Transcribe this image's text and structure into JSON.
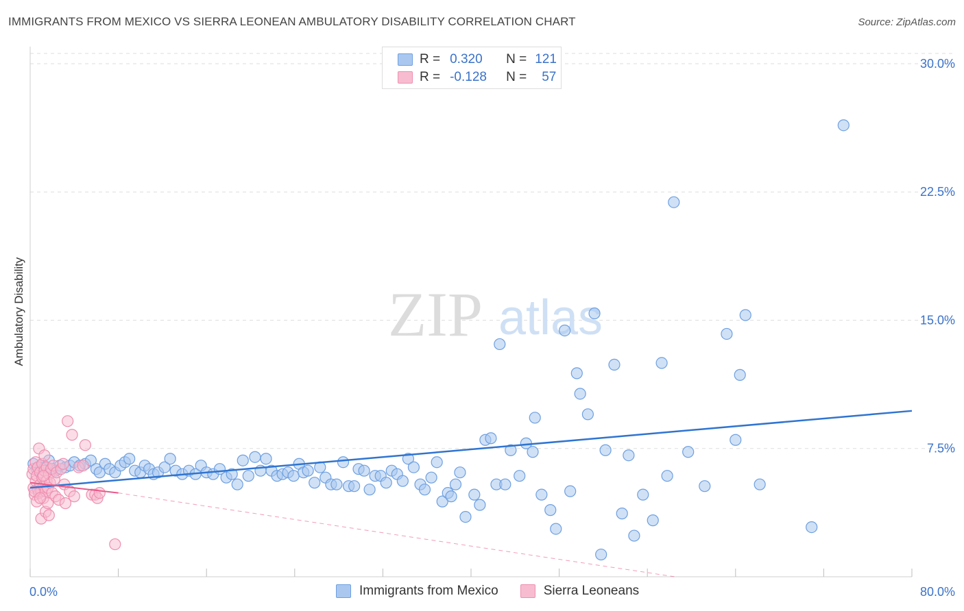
{
  "title": "IMMIGRANTS FROM MEXICO VS SIERRA LEONEAN AMBULATORY DISABILITY CORRELATION CHART",
  "source": "Source: ZipAtlas.com",
  "watermark": {
    "zip": "ZIP",
    "atlas": "atlas"
  },
  "legend_top": {
    "rows": [
      {
        "r_label": "R =",
        "r_value": "0.320",
        "n_label": "N =",
        "n_value": "121"
      },
      {
        "r_label": "R =",
        "r_value": "-0.128",
        "n_label": "N =",
        "n_value": "57"
      }
    ]
  },
  "legend_bottom": [
    "Immigrants from Mexico",
    "Sierra Leoneans"
  ],
  "colors": {
    "blue_fill": "#aac8ef",
    "blue_stroke": "#6d9fe0",
    "blue_line": "#2f74d0",
    "pink_fill": "#f7bcd0",
    "pink_stroke": "#ee8fb0",
    "pink_line": "#e8588a",
    "tick_label": "#3a72c9"
  },
  "chart_data": {
    "type": "scatter",
    "title": "IMMIGRANTS FROM MEXICO VS SIERRA LEONEAN AMBULATORY DISABILITY CORRELATION CHART",
    "xlabel": "",
    "ylabel": "Ambulatory Disability",
    "xlim": [
      0,
      80
    ],
    "ylim": [
      0,
      31
    ],
    "x_tick_labels": [
      "0.0%",
      "80.0%"
    ],
    "y_ticks": [
      7.5,
      15.0,
      22.5,
      30.0
    ],
    "y_tick_labels": [
      "7.5%",
      "15.0%",
      "22.5%",
      "30.0%"
    ],
    "grid": "horizontal dashed",
    "series": [
      {
        "name": "Immigrants from Mexico",
        "r": 0.32,
        "n": 121,
        "trend": {
          "x0": 0,
          "y0": 5.2,
          "x1": 80,
          "y1": 9.7
        },
        "points": [
          [
            0.3,
            6.6
          ],
          [
            0.6,
            6.3
          ],
          [
            1.0,
            6.5
          ],
          [
            1.3,
            6.4
          ],
          [
            1.7,
            6.8
          ],
          [
            2.0,
            6.3
          ],
          [
            2.3,
            6.2
          ],
          [
            2.7,
            6.5
          ],
          [
            3.2,
            6.4
          ],
          [
            3.6,
            6.5
          ],
          [
            4.0,
            6.7
          ],
          [
            4.5,
            6.5
          ],
          [
            5.0,
            6.6
          ],
          [
            5.5,
            6.8
          ],
          [
            6.0,
            6.3
          ],
          [
            6.3,
            6.1
          ],
          [
            6.8,
            6.6
          ],
          [
            7.2,
            6.3
          ],
          [
            7.7,
            6.1
          ],
          [
            8.2,
            6.5
          ],
          [
            8.6,
            6.7
          ],
          [
            9.0,
            6.9
          ],
          [
            9.5,
            6.2
          ],
          [
            10.0,
            6.1
          ],
          [
            10.4,
            6.5
          ],
          [
            10.8,
            6.3
          ],
          [
            11.2,
            6.0
          ],
          [
            11.6,
            6.1
          ],
          [
            12.2,
            6.4
          ],
          [
            12.7,
            6.9
          ],
          [
            13.2,
            6.2
          ],
          [
            13.8,
            6.0
          ],
          [
            14.4,
            6.2
          ],
          [
            15.0,
            6.0
          ],
          [
            15.5,
            6.5
          ],
          [
            16.0,
            6.1
          ],
          [
            16.6,
            6.0
          ],
          [
            17.2,
            6.3
          ],
          [
            17.8,
            5.8
          ],
          [
            18.3,
            6.0
          ],
          [
            18.8,
            5.4
          ],
          [
            19.3,
            6.8
          ],
          [
            19.8,
            5.9
          ],
          [
            20.4,
            7.0
          ],
          [
            20.9,
            6.2
          ],
          [
            21.4,
            6.9
          ],
          [
            21.9,
            6.2
          ],
          [
            22.4,
            5.9
          ],
          [
            22.9,
            6.0
          ],
          [
            23.4,
            6.1
          ],
          [
            23.9,
            5.9
          ],
          [
            24.4,
            6.6
          ],
          [
            24.8,
            6.1
          ],
          [
            25.2,
            6.2
          ],
          [
            25.8,
            5.5
          ],
          [
            26.3,
            6.4
          ],
          [
            26.8,
            5.8
          ],
          [
            27.3,
            5.4
          ],
          [
            27.8,
            5.4
          ],
          [
            28.4,
            6.7
          ],
          [
            28.9,
            5.3
          ],
          [
            29.4,
            5.3
          ],
          [
            29.8,
            6.3
          ],
          [
            30.3,
            6.2
          ],
          [
            30.8,
            5.1
          ],
          [
            31.3,
            5.9
          ],
          [
            31.8,
            5.9
          ],
          [
            32.3,
            5.5
          ],
          [
            32.8,
            6.2
          ],
          [
            33.3,
            6.0
          ],
          [
            33.8,
            5.6
          ],
          [
            34.3,
            6.9
          ],
          [
            34.8,
            6.4
          ],
          [
            35.4,
            5.4
          ],
          [
            35.8,
            5.1
          ],
          [
            36.4,
            5.8
          ],
          [
            36.9,
            6.7
          ],
          [
            37.4,
            4.4
          ],
          [
            37.9,
            4.9
          ],
          [
            38.2,
            4.7
          ],
          [
            38.6,
            5.4
          ],
          [
            39.0,
            6.1
          ],
          [
            39.5,
            3.5
          ],
          [
            40.3,
            4.8
          ],
          [
            40.8,
            4.2
          ],
          [
            41.3,
            8.0
          ],
          [
            41.8,
            8.1
          ],
          [
            42.3,
            5.4
          ],
          [
            42.6,
            13.6
          ],
          [
            43.1,
            5.4
          ],
          [
            43.6,
            7.4
          ],
          [
            44.4,
            5.9
          ],
          [
            45.0,
            7.8
          ],
          [
            45.6,
            7.3
          ],
          [
            45.8,
            9.3
          ],
          [
            46.4,
            4.8
          ],
          [
            47.2,
            3.9
          ],
          [
            47.7,
            2.8
          ],
          [
            48.5,
            14.4
          ],
          [
            49.0,
            5.0
          ],
          [
            49.6,
            11.9
          ],
          [
            49.9,
            10.7
          ],
          [
            50.6,
            9.5
          ],
          [
            51.2,
            15.4
          ],
          [
            51.8,
            1.3
          ],
          [
            52.2,
            7.4
          ],
          [
            53.0,
            12.4
          ],
          [
            53.7,
            3.7
          ],
          [
            54.3,
            7.1
          ],
          [
            54.8,
            2.4
          ],
          [
            55.6,
            4.8
          ],
          [
            56.5,
            3.3
          ],
          [
            57.3,
            12.5
          ],
          [
            57.8,
            5.9
          ],
          [
            58.4,
            21.9
          ],
          [
            59.7,
            7.3
          ],
          [
            61.2,
            5.3
          ],
          [
            63.2,
            14.2
          ],
          [
            64.0,
            8.0
          ],
          [
            64.4,
            11.8
          ],
          [
            64.9,
            15.3
          ],
          [
            66.2,
            5.4
          ],
          [
            70.9,
            2.9
          ],
          [
            73.8,
            26.4
          ]
        ]
      },
      {
        "name": "Sierra Leoneans",
        "r": -0.128,
        "n": 57,
        "trend": {
          "x0": 0,
          "y0": 5.5,
          "x1": 8,
          "y1": 4.9
        },
        "trend_extension": {
          "x0": 8,
          "y0": 4.9,
          "x1": 58.5,
          "y1": 0.0
        },
        "points": [
          [
            0.2,
            6.0
          ],
          [
            0.3,
            5.2
          ],
          [
            0.3,
            6.3
          ],
          [
            0.4,
            4.8
          ],
          [
            0.5,
            5.6
          ],
          [
            0.5,
            6.7
          ],
          [
            0.6,
            4.4
          ],
          [
            0.6,
            5.9
          ],
          [
            0.7,
            5.1
          ],
          [
            0.7,
            6.4
          ],
          [
            0.8,
            4.9
          ],
          [
            0.8,
            7.5
          ],
          [
            0.9,
            5.4
          ],
          [
            0.9,
            6.1
          ],
          [
            1.0,
            5.0
          ],
          [
            1.0,
            3.4
          ],
          [
            1.1,
            5.8
          ],
          [
            1.1,
            6.6
          ],
          [
            1.2,
            4.6
          ],
          [
            1.2,
            5.3
          ],
          [
            1.3,
            6.2
          ],
          [
            1.3,
            7.1
          ],
          [
            1.4,
            5.0
          ],
          [
            1.4,
            3.8
          ],
          [
            1.5,
            5.6
          ],
          [
            1.5,
            6.4
          ],
          [
            1.6,
            4.3
          ],
          [
            1.6,
            5.2
          ],
          [
            1.7,
            3.6
          ],
          [
            1.7,
            6.0
          ],
          [
            1.8,
            5.5
          ],
          [
            1.9,
            6.3
          ],
          [
            2.0,
            4.9
          ],
          [
            2.1,
            6.5
          ],
          [
            2.2,
            5.7
          ],
          [
            2.3,
            4.7
          ],
          [
            2.4,
            6.1
          ],
          [
            2.6,
            4.5
          ],
          [
            2.8,
            6.3
          ],
          [
            3.0,
            6.6
          ],
          [
            3.1,
            5.4
          ],
          [
            3.2,
            4.3
          ],
          [
            3.4,
            9.1
          ],
          [
            3.6,
            5.0
          ],
          [
            3.8,
            8.3
          ],
          [
            4.0,
            4.7
          ],
          [
            4.4,
            6.4
          ],
          [
            4.8,
            6.5
          ],
          [
            5.0,
            7.7
          ],
          [
            5.6,
            4.8
          ],
          [
            5.9,
            4.8
          ],
          [
            6.1,
            4.6
          ],
          [
            6.3,
            4.9
          ],
          [
            7.7,
            1.9
          ],
          [
            0.4,
            5.0
          ],
          [
            0.9,
            4.6
          ],
          [
            1.2,
            5.9
          ]
        ]
      }
    ]
  }
}
